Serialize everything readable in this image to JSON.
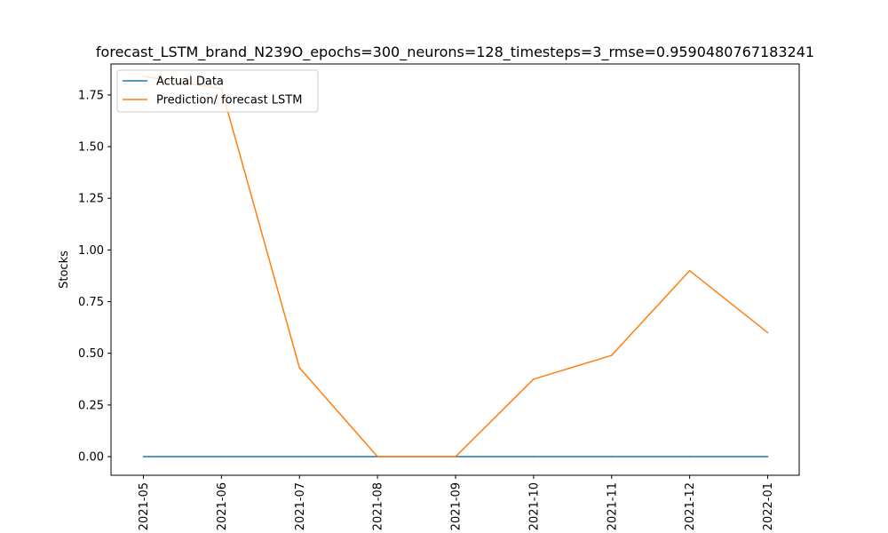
{
  "chart_data": {
    "type": "line",
    "title": "forecast_LSTM_brand_N239O_epochs=300_neurons=128_timesteps=3_rmse=0.9590480767183241",
    "xlabel": "",
    "ylabel": "Stocks",
    "x": [
      "2021-05",
      "2021-06",
      "2021-07",
      "2021-08",
      "2021-09",
      "2021-10",
      "2021-11",
      "2021-12",
      "2022-01"
    ],
    "ylim": [
      -0.09,
      1.9
    ],
    "yticks": [
      0.0,
      0.25,
      0.5,
      0.75,
      1.0,
      1.25,
      1.5,
      1.75
    ],
    "ytick_labels": [
      "0.00",
      "0.25",
      "0.50",
      "0.75",
      "1.00",
      "1.25",
      "1.50",
      "1.75"
    ],
    "grid": false,
    "legend_position": "upper left",
    "series": [
      {
        "name": "Actual Data",
        "color": "#1f77b4",
        "values": [
          0,
          0,
          0,
          0,
          0,
          0,
          0,
          0,
          0
        ]
      },
      {
        "name": "Prediction/ forecast LSTM",
        "color": "#ff7f0e",
        "values": [
          1.84,
          1.78,
          0.43,
          0.0,
          0.0,
          0.375,
          0.49,
          0.9,
          0.6
        ]
      }
    ]
  }
}
